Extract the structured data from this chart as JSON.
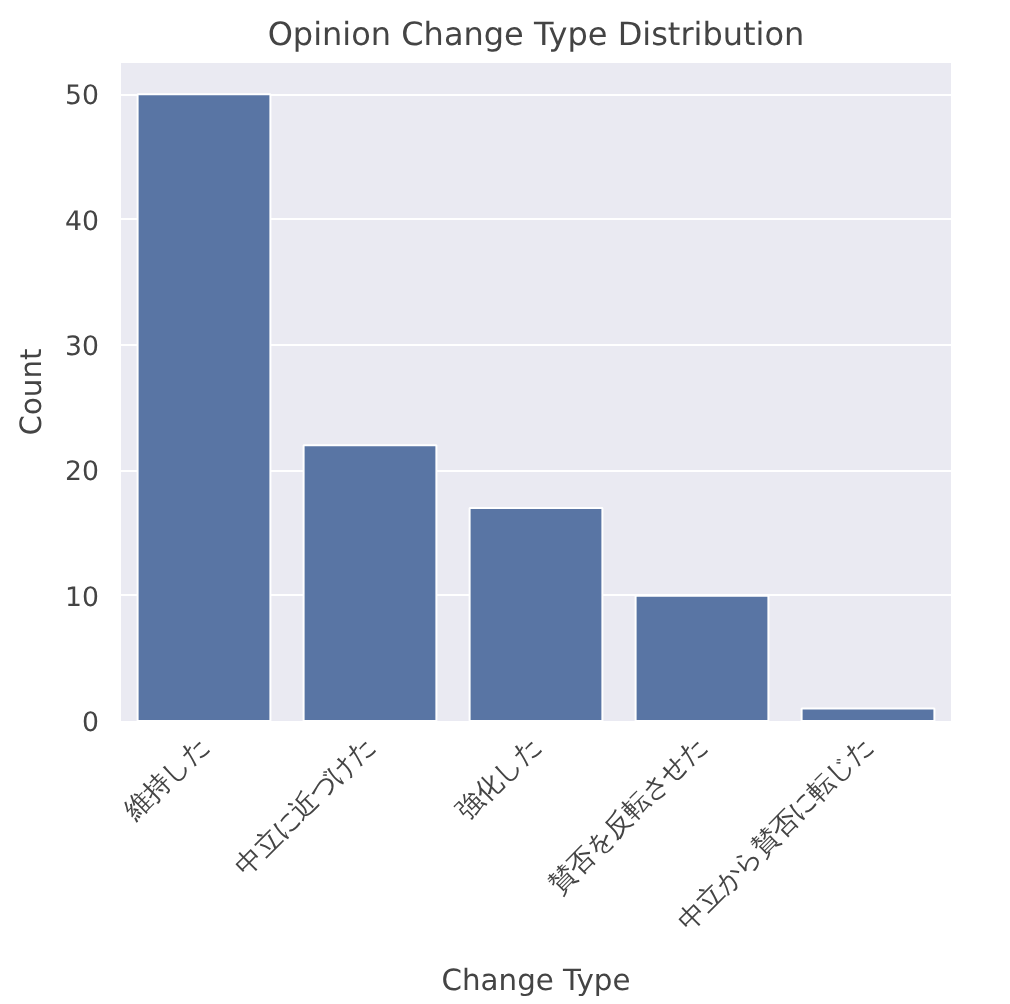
{
  "chart_data": {
    "type": "bar",
    "title": "Opinion Change Type Distribution",
    "xlabel": "Change Type",
    "ylabel": "Count",
    "categories": [
      "維持した",
      "中立に近づけた",
      "強化した",
      "賛否を反転させた",
      "中立から賛否に転じた"
    ],
    "values": [
      50,
      22,
      17,
      10,
      1
    ],
    "color": "#5975a4",
    "ylim": [
      0,
      52.5
    ],
    "yticks": [
      0,
      10,
      20,
      30,
      40,
      50
    ],
    "grid": "y"
  }
}
